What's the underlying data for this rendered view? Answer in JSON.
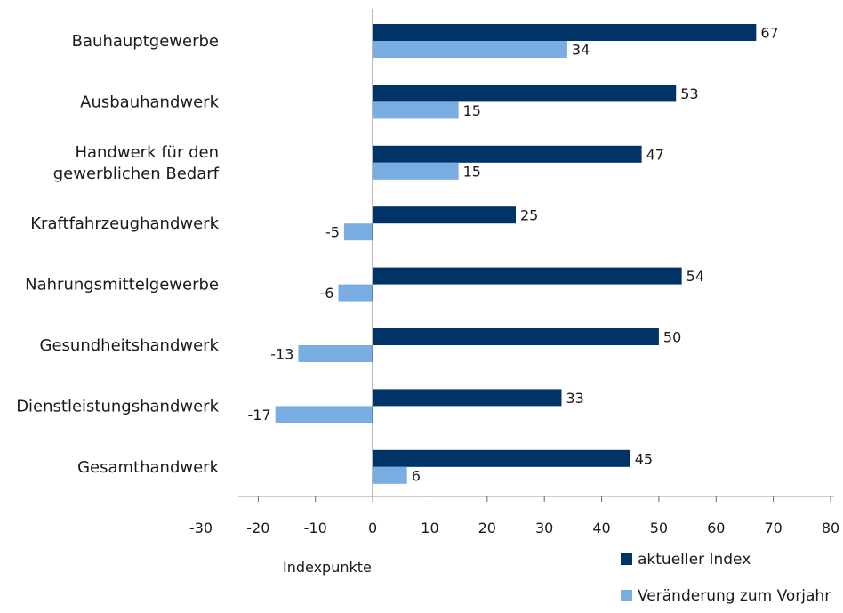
{
  "chart_data": {
    "type": "bar",
    "orientation": "horizontal",
    "categories": [
      "Bauhauptgewerbe",
      "Ausbauhandwerk",
      "Handwerk für den gewerblichen Bedarf",
      "Kraftfahrzeughandwerk",
      "Nahrungsmittelgewerbe",
      "Gesundheitshandwerk",
      "Dienstleistungshandwerk",
      "Gesamthandwerk"
    ],
    "category_lines": [
      [
        "Bauhauptgewerbe"
      ],
      [
        "Ausbauhandwerk"
      ],
      [
        "Handwerk für den",
        "gewerblichen Bedarf"
      ],
      [
        "Kraftfahrzeughandwerk"
      ],
      [
        "Nahrungsmittelgewerbe"
      ],
      [
        "Gesundheitshandwerk"
      ],
      [
        "Dienstleistungshandwerk"
      ],
      [
        "Gesamthandwerk"
      ]
    ],
    "series": [
      {
        "name": "aktueller Index",
        "color": "#003366",
        "values": [
          67,
          53,
          47,
          25,
          54,
          50,
          33,
          45
        ]
      },
      {
        "name": "Veränderung zum Vorjahr",
        "color": "#7aaee3",
        "values": [
          34,
          15,
          15,
          -5,
          -6,
          -13,
          -17,
          6
        ]
      }
    ],
    "xlim": [
      -30,
      80
    ],
    "xticks": [
      -30,
      -20,
      -10,
      0,
      10,
      20,
      30,
      40,
      50,
      60,
      70,
      80
    ],
    "xlabel": "Indexpunkte",
    "ylabel": "",
    "title": "",
    "grid": false,
    "legend": "bottom-right"
  }
}
